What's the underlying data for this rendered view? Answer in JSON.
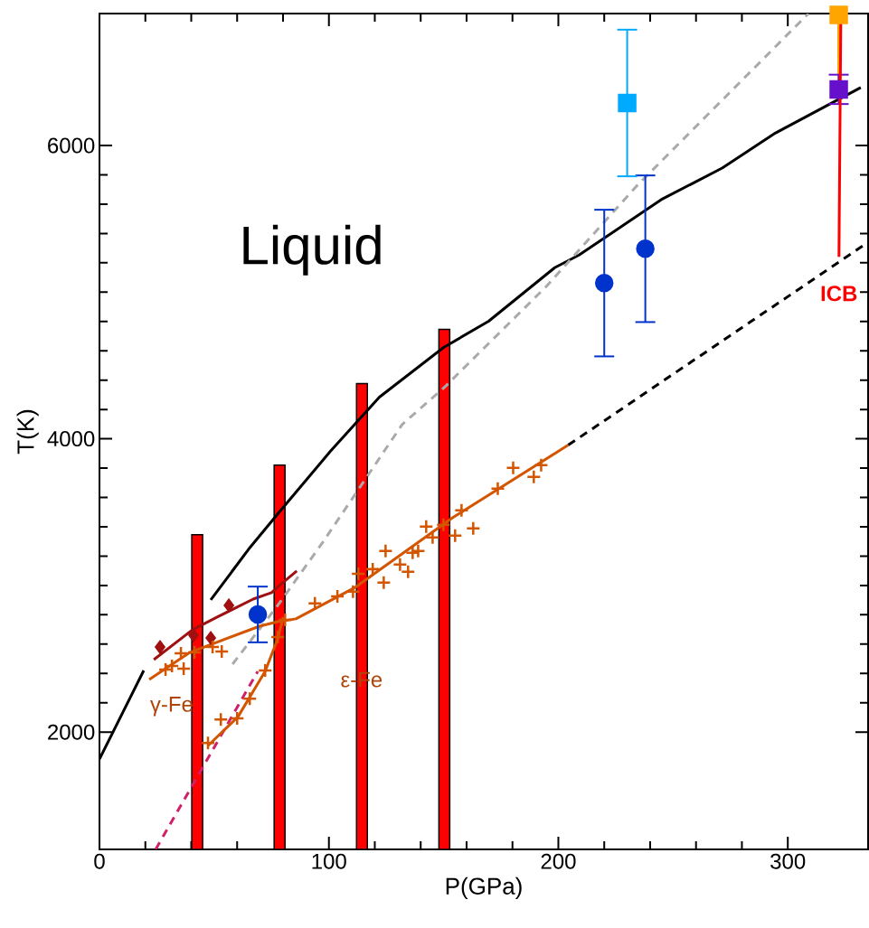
{
  "chart_data": {
    "type": "line",
    "xlabel": "P(GPa)",
    "ylabel": "T(K)",
    "xlim": [
      0,
      335
    ],
    "ylim": [
      1200,
      6900
    ],
    "xticks": [
      0,
      100,
      200,
      300
    ],
    "yticks": [
      2000,
      4000,
      6000
    ],
    "series": [
      {
        "type": "bar",
        "color": "#ff0000",
        "x": [
          42.6,
          78.5,
          114.4,
          150.3
        ],
        "values": [
          3346,
          3821,
          4377,
          4747
        ]
      },
      {
        "color": "#000000",
        "x": [
          0,
          19.3,
          33,
          48.5,
          65,
          79,
          100.6,
          122,
          150,
          169.6,
          198.4,
          209,
          245.4,
          271.4,
          294.7,
          331.8
        ],
        "values": [
          1815,
          2420,
          null,
          2901,
          3247,
          3512,
          3914,
          4284,
          4623,
          4802,
          5167,
          5253,
          5636,
          5846,
          6086,
          6395
        ]
      },
      {
        "color": "#000000",
        "line_style": "dashed",
        "x": [
          204.3,
          335
        ],
        "values": [
          3957,
          5340
        ]
      },
      {
        "color": "#aaaaaa",
        "line_style": "dashed",
        "x": [
          58,
          77.7,
          97.4,
          132,
          150,
          195,
          234,
          309
        ],
        "values": [
          2463,
          2864,
          3296,
          4099,
          4346,
          5043,
          5722,
          6900
        ]
      },
      {
        "color": "#d0206a",
        "line_style": "dashed",
        "x": [
          24.5,
          69
        ],
        "values": [
          1200,
          2414
        ]
      },
      {
        "color": "#a01010",
        "x": [
          23.7,
          40.6,
          51.3,
          67,
          75,
          78.9,
          86
        ],
        "values": [
          2494,
          2698,
          2784,
          2907,
          2951,
          3006,
          3099
        ]
      },
      {
        "color": "#d45500",
        "x": [
          21.7,
          39.4,
          69.8,
          77.7,
          85.6,
          111.6,
          154,
          204.3
        ],
        "values": [
          2358,
          2543,
          2722,
          2753,
          2772,
          2988,
          3463,
          3957
        ]
      },
      {
        "color": "#d45500",
        "x": [
          47.3,
          60.4,
          72.2,
          77.7,
          80.1
        ],
        "values": [
          1907,
          2105,
          2414,
          2636,
          2784
        ]
      },
      {
        "type": "scatter",
        "color": "#a01010",
        "marker": "diamond",
        "x": [
          26.4,
          41,
          48.5,
          56.4
        ],
        "values": [
          2580,
          2660,
          2642,
          2864
        ]
      },
      {
        "type": "scatter",
        "color": "#d45500",
        "marker": "cross",
        "x": [
          28.8,
          31.6,
          35.5,
          36.7,
          41.4,
          49.3,
          53.3,
          47.3,
          52.9,
          60,
          65.5,
          72.2,
          77.7,
          80.9,
          93.9,
          103.7,
          110.5,
          112.8,
          119.1,
          123.9,
          124.7,
          131,
          134.5,
          136.5,
          138.9,
          142.4,
          145.2,
          149.9,
          155,
          157.8,
          162.9,
          173.6,
          180.3,
          189.3,
          192.5
        ],
        "values": [
          2426,
          2451,
          2537,
          2432,
          2543,
          2580,
          2549,
          1926,
          2086,
          2093,
          2228,
          2420,
          2648,
          2765,
          2877,
          2926,
          2957,
          3080,
          3111,
          3019,
          3235,
          3142,
          3093,
          3222,
          3235,
          3401,
          3327,
          3414,
          3340,
          3512,
          3389,
          3660,
          3802,
          3741,
          3821
        ]
      },
      {
        "type": "scatter",
        "color": "#0033cc",
        "marker": "circle",
        "x": [
          69,
          220,
          237.9
        ],
        "values": [
          2802,
          5062,
          5296
        ],
        "errors": [
          190,
          500,
          500
        ]
      },
      {
        "type": "scatter",
        "color": "#00aaff",
        "marker": "square",
        "x": [
          230
        ],
        "values": [
          6290
        ],
        "errors": [
          500
        ]
      },
      {
        "color": "#ffa500",
        "x": [
          322.2,
          322.2
        ],
        "values": [
          6890,
          6440
        ]
      },
      {
        "type": "scatter",
        "color": "#ffa500",
        "marker": "square",
        "x": [
          322.2
        ],
        "values": [
          6890
        ]
      },
      {
        "type": "scatter",
        "color": "#6610cc",
        "marker": "square",
        "x": [
          322.2
        ],
        "values": [
          6383
        ],
        "errors": [
          100
        ]
      },
      {
        "color": "#ff0000",
        "x": [
          323.1,
          322.3
        ],
        "values": [
          6840,
          5241
        ]
      }
    ],
    "annotations": [
      "Liquid",
      "γ-Fe",
      "ε-Fe",
      "ICB"
    ]
  }
}
